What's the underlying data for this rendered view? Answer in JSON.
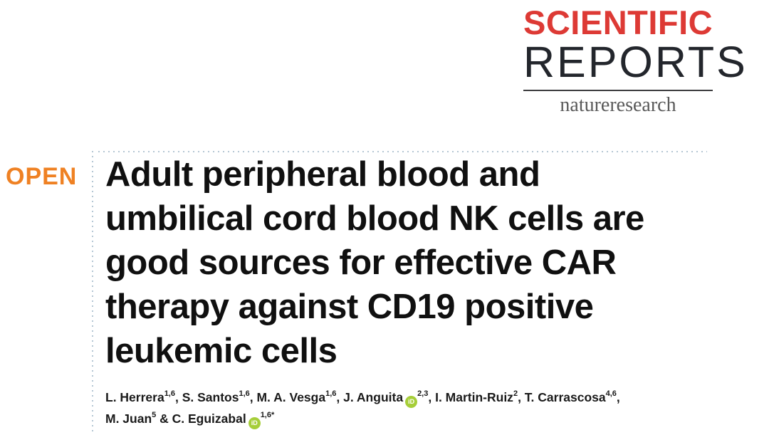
{
  "logo": {
    "scientific": "SCIENTIFIC",
    "reports": "REPORTS",
    "publisher": "natureresearch",
    "scientific_color": "#DD3A35",
    "reports_color": "#23262C",
    "publisher_color": "#595959"
  },
  "article": {
    "open_label": "OPEN",
    "open_color": "#EF8123",
    "title_lines": [
      "Adult peripheral blood and",
      "umbilical cord blood NK cells are",
      "good sources for effective CAR",
      "therapy against CD19 positive",
      "leukemic cells"
    ]
  },
  "authors": {
    "orcid_label": "iD",
    "orcid_color": "#A6CE39",
    "lines": [
      {
        "segments": [
          {
            "t": "text",
            "v": "L. Herrera"
          },
          {
            "t": "sup",
            "v": "1,6"
          },
          {
            "t": "text",
            "v": ", S. Santos"
          },
          {
            "t": "sup",
            "v": "1,6"
          },
          {
            "t": "text",
            "v": ", M. A. Vesga"
          },
          {
            "t": "sup",
            "v": "1,6"
          },
          {
            "t": "text",
            "v": ", J. Anguita"
          },
          {
            "t": "orcid"
          },
          {
            "t": "sup",
            "v": "2,3"
          },
          {
            "t": "text",
            "v": ", I. Martin-Ruiz"
          },
          {
            "t": "sup",
            "v": "2"
          },
          {
            "t": "text",
            "v": ", T. Carrascosa"
          },
          {
            "t": "sup",
            "v": "4,6"
          },
          {
            "t": "text",
            "v": ","
          }
        ]
      },
      {
        "segments": [
          {
            "t": "text",
            "v": "M. Juan"
          },
          {
            "t": "sup",
            "v": "5"
          },
          {
            "t": "text",
            "v": " & C. Eguizabal"
          },
          {
            "t": "orcid"
          },
          {
            "t": "sup",
            "v": "1,6*"
          }
        ]
      }
    ]
  },
  "accents": {
    "dotted_rule_color": "#B5C7D4",
    "logo_rule_color": "#3d3d3f",
    "title_color": "#101010"
  }
}
